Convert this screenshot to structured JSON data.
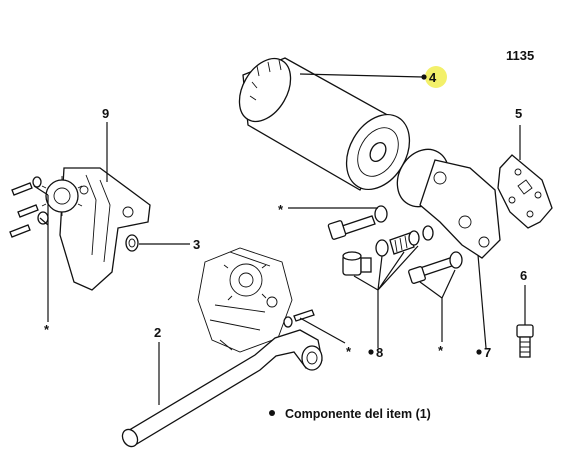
{
  "figure": {
    "code": "1135"
  },
  "callouts": [
    {
      "id": "4",
      "text": "4"
    },
    {
      "id": "5",
      "text": "5"
    },
    {
      "id": "6",
      "text": "6"
    },
    {
      "id": "7",
      "text": "7"
    },
    {
      "id": "8",
      "text": "8"
    },
    {
      "id": "9",
      "text": "9"
    },
    {
      "id": "3",
      "text": "3"
    },
    {
      "id": "2",
      "text": "2"
    },
    {
      "id": "star",
      "text": "*"
    }
  ],
  "highlight": {
    "color": "#f3f06a",
    "callout": "4"
  },
  "legend": {
    "text": "Componente del item (1)"
  }
}
